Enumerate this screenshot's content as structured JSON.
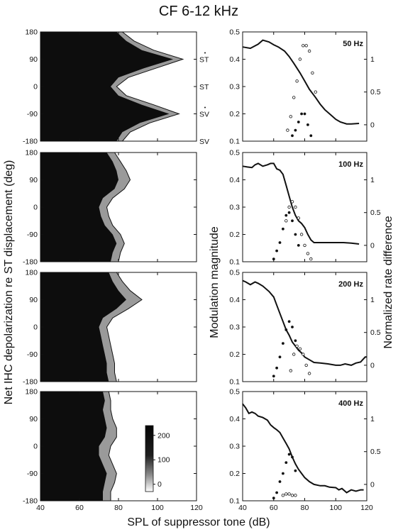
{
  "figure": {
    "title": "CF  6-12 kHz",
    "left_ylabel": "Net IHC depolarization re ST displacement (deg)",
    "xlabel": "SPL of suppressor tone (dB)",
    "mid_ylabel": "Modulation magnitude",
    "right_ylabel": "Normalized rate difference",
    "right_annotations": [
      "ST",
      "ST",
      "SV",
      "SV"
    ],
    "colorbar": {
      "ticks": [
        "200",
        "100",
        "0"
      ],
      "range": [
        -30,
        240
      ]
    }
  },
  "chart_data": [
    {
      "type": "heatmap",
      "panel": 1,
      "xlim": [
        40,
        120
      ],
      "ylim": [
        -180,
        180
      ],
      "xticks": [
        "40",
        "60",
        "80",
        "100",
        "120"
      ],
      "yticks": [
        "180",
        "90",
        "0",
        "-90",
        "-180"
      ],
      "y": [
        180,
        150,
        120,
        90,
        60,
        30,
        0,
        -30,
        -60,
        -90,
        -120,
        -150,
        -180
      ],
      "boundary_dark": [
        79,
        84,
        92,
        108,
        93,
        80,
        76,
        80,
        92,
        106,
        91,
        82,
        79
      ],
      "boundary_contour": [
        82,
        88,
        98,
        113,
        99,
        85,
        79,
        84,
        98,
        111,
        96,
        86,
        82
      ]
    },
    {
      "type": "heatmap",
      "panel": 2,
      "xlim": [
        40,
        120
      ],
      "ylim": [
        -180,
        180
      ],
      "xticks": [
        "40",
        "60",
        "80",
        "100",
        "120"
      ],
      "yticks": [
        "180",
        "90",
        "0",
        "-90",
        "-180"
      ],
      "y": [
        180,
        150,
        120,
        90,
        60,
        30,
        0,
        -30,
        -60,
        -90,
        -120,
        -150,
        -180
      ],
      "boundary_dark": [
        74,
        77,
        79,
        80,
        78,
        72,
        70,
        71,
        73,
        77,
        79,
        77,
        76
      ],
      "boundary_contour": [
        78,
        81,
        84,
        86,
        83,
        77,
        74,
        75,
        77,
        81,
        83,
        81,
        80
      ]
    },
    {
      "type": "heatmap",
      "panel": 3,
      "xlim": [
        40,
        120
      ],
      "ylim": [
        -180,
        180
      ],
      "xticks": [
        "40",
        "60",
        "80",
        "100",
        "120"
      ],
      "yticks": [
        "180",
        "90",
        "0",
        "-90",
        "-180"
      ],
      "y": [
        180,
        150,
        120,
        90,
        60,
        30,
        0,
        -30,
        -60,
        -90,
        -120,
        -150,
        -180
      ],
      "boundary_dark": [
        75,
        77,
        80,
        84,
        79,
        72,
        70,
        71,
        72,
        73,
        74,
        74,
        75
      ],
      "boundary_contour": [
        79,
        82,
        86,
        92,
        85,
        77,
        74,
        75,
        76,
        77,
        78,
        78,
        79
      ]
    },
    {
      "type": "heatmap",
      "panel": 4,
      "xlim": [
        40,
        120
      ],
      "ylim": [
        -180,
        180
      ],
      "xticks": [
        "40",
        "60",
        "80",
        "100",
        "120"
      ],
      "yticks": [
        "180",
        "90",
        "0",
        "-90",
        "-180"
      ],
      "y": [
        180,
        150,
        120,
        90,
        60,
        30,
        0,
        -30,
        -60,
        -90,
        -120,
        -150,
        -180
      ],
      "boundary_dark": [
        72,
        73,
        72,
        73,
        74,
        73,
        70,
        70,
        72,
        74,
        73,
        72,
        72
      ],
      "boundary_contour": [
        75,
        76,
        76,
        77,
        79,
        79,
        76,
        75,
        77,
        79,
        78,
        76,
        76
      ]
    },
    {
      "type": "line",
      "panel": 1,
      "frequency_label": "50 Hz",
      "xlim": [
        40,
        120
      ],
      "ylim": [
        0.1,
        0.5
      ],
      "xticks": [
        "40",
        "60",
        "80",
        "100",
        "120"
      ],
      "yticks": [
        "0.5",
        "0.4",
        "0.3",
        "0.2",
        "0.1"
      ],
      "yticks_right": [
        "1",
        "0.5",
        "0"
      ],
      "x": [
        40,
        45,
        50,
        53,
        57,
        60,
        63,
        67,
        70,
        73,
        77,
        80,
        83,
        87,
        90,
        93,
        97,
        100,
        103,
        107,
        110,
        115
      ],
      "y": [
        0.445,
        0.44,
        0.455,
        0.47,
        0.463,
        0.453,
        0.445,
        0.43,
        0.41,
        0.385,
        0.35,
        0.32,
        0.29,
        0.26,
        0.235,
        0.215,
        0.195,
        0.18,
        0.17,
        0.163,
        0.163,
        0.165
      ],
      "open_points": {
        "x": [
          69,
          71,
          73,
          75,
          77,
          79,
          81,
          83,
          85,
          87
        ],
        "y": [
          0.14,
          0.19,
          0.26,
          0.32,
          0.4,
          0.45,
          0.45,
          0.43,
          0.35,
          0.28
        ]
      },
      "filled_points": {
        "x": [
          72,
          74,
          76,
          78,
          80,
          82,
          84
        ],
        "y": [
          0.12,
          0.14,
          0.17,
          0.2,
          0.2,
          0.16,
          0.12
        ]
      }
    },
    {
      "type": "line",
      "panel": 2,
      "frequency_label": "100 Hz",
      "xlim": [
        40,
        120
      ],
      "ylim": [
        0.1,
        0.5
      ],
      "xticks": [
        "40",
        "60",
        "80",
        "100",
        "120"
      ],
      "yticks": [
        "0.5",
        "0.4",
        "0.3",
        "0.2",
        "0.1"
      ],
      "yticks_right": [
        "1",
        "0.5",
        "0"
      ],
      "x": [
        40,
        43,
        46,
        48,
        50,
        53,
        56,
        58,
        60,
        62,
        64,
        66,
        68,
        70,
        72,
        74,
        76,
        78,
        80,
        82,
        84,
        86,
        90,
        95,
        100,
        105,
        110,
        115
      ],
      "y": [
        0.45,
        0.447,
        0.445,
        0.455,
        0.46,
        0.45,
        0.455,
        0.46,
        0.46,
        0.44,
        0.435,
        0.42,
        0.38,
        0.34,
        0.3,
        0.27,
        0.25,
        0.24,
        0.225,
        0.2,
        0.18,
        0.17,
        0.17,
        0.17,
        0.17,
        0.17,
        0.168,
        0.165
      ],
      "open_points": {
        "x": [
          68,
          70,
          72,
          74,
          76,
          78,
          80,
          82,
          84
        ],
        "y": [
          0.25,
          0.3,
          0.32,
          0.3,
          0.26,
          0.2,
          0.16,
          0.13,
          0.11
        ]
      },
      "filled_points": {
        "x": [
          60,
          62,
          64,
          66,
          68,
          70,
          72,
          74,
          76
        ],
        "y": [
          0.11,
          0.14,
          0.17,
          0.22,
          0.27,
          0.28,
          0.25,
          0.2,
          0.16
        ]
      }
    },
    {
      "type": "line",
      "panel": 3,
      "frequency_label": "200 Hz",
      "xlim": [
        40,
        120
      ],
      "ylim": [
        0.1,
        0.5
      ],
      "xticks": [
        "40",
        "60",
        "80",
        "100",
        "120"
      ],
      "yticks": [
        "0.5",
        "0.4",
        "0.3",
        "0.2",
        "0.1"
      ],
      "yticks_right": [
        "1",
        "0.5",
        "0"
      ],
      "x": [
        40,
        42,
        45,
        48,
        50,
        53,
        57,
        60,
        62,
        64,
        66,
        68,
        70,
        72,
        74,
        76,
        78,
        80,
        83,
        86,
        90,
        95,
        100,
        103,
        106,
        110,
        113,
        116,
        119,
        120
      ],
      "y": [
        0.47,
        0.465,
        0.455,
        0.465,
        0.46,
        0.45,
        0.43,
        0.41,
        0.38,
        0.35,
        0.32,
        0.29,
        0.27,
        0.245,
        0.23,
        0.215,
        0.205,
        0.19,
        0.18,
        0.17,
        0.168,
        0.165,
        0.16,
        0.16,
        0.165,
        0.16,
        0.168,
        0.172,
        0.19,
        0.19
      ],
      "open_points": {
        "x": [
          71,
          73,
          75,
          77,
          79,
          81,
          83
        ],
        "y": [
          0.14,
          0.2,
          0.23,
          0.22,
          0.2,
          0.16,
          0.13
        ]
      },
      "filled_points": {
        "x": [
          60,
          62,
          64,
          66,
          68,
          70,
          72,
          74
        ],
        "y": [
          0.12,
          0.15,
          0.19,
          0.24,
          0.29,
          0.32,
          0.3,
          0.25
        ]
      }
    },
    {
      "type": "line",
      "panel": 4,
      "frequency_label": "400 Hz",
      "xlim": [
        40,
        120
      ],
      "ylim": [
        0.1,
        0.5
      ],
      "xticks": [
        "40",
        "60",
        "80",
        "100",
        "120"
      ],
      "yticks": [
        "0.5",
        "0.4",
        "0.3",
        "0.2",
        "0.1"
      ],
      "yticks_right": [
        "1",
        "0.5",
        "0"
      ],
      "x": [
        40,
        42,
        44,
        46,
        48,
        50,
        53,
        56,
        58,
        60,
        62,
        64,
        66,
        68,
        70,
        72,
        74,
        76,
        78,
        80,
        83,
        86,
        90,
        93,
        96,
        100,
        102,
        104,
        107,
        110,
        113,
        116,
        118
      ],
      "y": [
        0.455,
        0.44,
        0.42,
        0.425,
        0.42,
        0.41,
        0.405,
        0.395,
        0.378,
        0.368,
        0.36,
        0.35,
        0.33,
        0.31,
        0.29,
        0.26,
        0.235,
        0.215,
        0.2,
        0.185,
        0.17,
        0.16,
        0.155,
        0.155,
        0.15,
        0.148,
        0.14,
        0.145,
        0.13,
        0.14,
        0.135,
        0.14,
        0.14
      ],
      "open_points": {
        "x": [
          66,
          68,
          70,
          72,
          74
        ],
        "y": [
          0.12,
          0.125,
          0.125,
          0.12,
          0.12
        ]
      },
      "filled_points": {
        "x": [
          60,
          62,
          64,
          66,
          68,
          70,
          72,
          74
        ],
        "y": [
          0.11,
          0.13,
          0.17,
          0.2,
          0.24,
          0.27,
          0.26,
          0.21
        ]
      }
    }
  ]
}
